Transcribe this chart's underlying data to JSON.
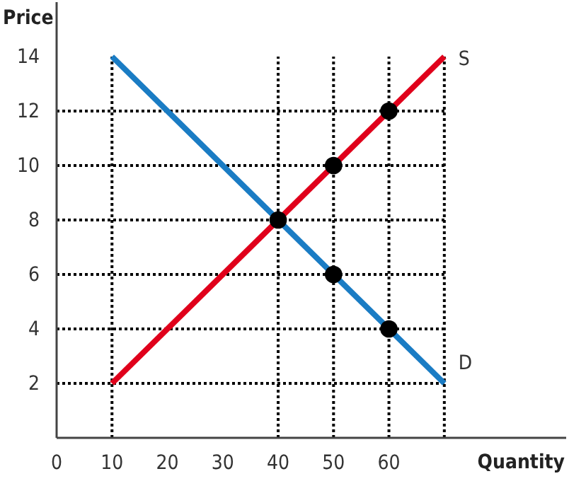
{
  "chart_data": {
    "type": "line",
    "xlabel": "Quantity",
    "ylabel": "Price",
    "xlim": [
      0,
      92
    ],
    "ylim": [
      0,
      16
    ],
    "xticks": [
      0,
      10,
      20,
      30,
      40,
      50,
      60
    ],
    "yticks": [
      2,
      4,
      6,
      8,
      10,
      12,
      14
    ],
    "legend": false,
    "series": [
      {
        "name": "D",
        "color": "#1a7cc4",
        "x": [
          10,
          70
        ],
        "values": [
          14,
          2
        ],
        "marker": "none"
      },
      {
        "name": "S",
        "color": "#e0001b",
        "x": [
          10,
          70
        ],
        "values": [
          2,
          14
        ],
        "marker": "none"
      },
      {
        "type": "scatter",
        "color": "#000000",
        "x": [
          40,
          50,
          60,
          50,
          60
        ],
        "values": [
          8,
          10,
          12,
          6,
          4
        ],
        "marker": "circle"
      }
    ],
    "ref_lines": [
      {
        "axis": "y",
        "value": 2,
        "line_style": "dotted",
        "color": "#000000"
      },
      {
        "axis": "y",
        "value": 4,
        "line_style": "dotted",
        "color": "#000000"
      },
      {
        "axis": "y",
        "value": 6,
        "line_style": "dotted",
        "color": "#000000"
      },
      {
        "axis": "y",
        "value": 8,
        "line_style": "dotted",
        "color": "#000000"
      },
      {
        "axis": "y",
        "value": 10,
        "line_style": "dotted",
        "color": "#000000"
      },
      {
        "axis": "y",
        "value": 12,
        "line_style": "dotted",
        "color": "#000000"
      },
      {
        "axis": "x",
        "value": 10,
        "line_style": "dotted",
        "color": "#000000"
      },
      {
        "axis": "x",
        "value": 40,
        "line_style": "dotted",
        "color": "#000000"
      },
      {
        "axis": "x",
        "value": 50,
        "line_style": "dotted",
        "color": "#000000"
      },
      {
        "axis": "x",
        "value": 60,
        "line_style": "dotted",
        "color": "#000000"
      },
      {
        "axis": "x",
        "value": 70,
        "line_style": "dotted",
        "color": "#000000"
      }
    ]
  }
}
